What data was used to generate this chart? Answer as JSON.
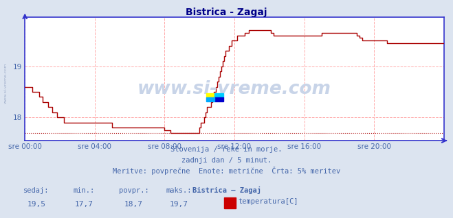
{
  "title": "Bistrica - Zagaj",
  "bg_color": "#dce4f0",
  "plot_bg_color": "#ffffff",
  "line_color": "#aa0000",
  "grid_color": "#ffaaaa",
  "axis_color": "#3333cc",
  "text_color": "#4466aa",
  "title_color": "#000088",
  "ylim": [
    17.55,
    19.95
  ],
  "xlim": [
    0,
    288
  ],
  "xtick_positions": [
    0,
    48,
    96,
    144,
    192,
    240
  ],
  "xtick_labels": [
    "sre 00:00",
    "sre 04:00",
    "sre 08:00",
    "sre 12:00",
    "sre 16:00",
    "sre 20:00"
  ],
  "ytick_positions": [
    18.0,
    19.0
  ],
  "ytick_labels": [
    "18",
    "19"
  ],
  "subtitle1": "Slovenija / reke in morje.",
  "subtitle2": "zadnji dan / 5 minut.",
  "subtitle3": "Meritve: povprečne  Enote: metrične  Črta: 5% meritev",
  "footer_labels": [
    "sedaj:",
    "min.:",
    "povpr.:",
    "maks.:",
    "Bistrica – Zagaj"
  ],
  "footer_values": [
    "19,5",
    "17,7",
    "18,7",
    "19,7"
  ],
  "legend_label": "temperatura[C]",
  "legend_color": "#cc0000",
  "min_line_y": 17.7,
  "watermark": "www.si-vreme.com",
  "left_label": "www.si-vreme.com",
  "temp_data": [
    18.6,
    18.6,
    18.6,
    18.6,
    18.6,
    18.5,
    18.5,
    18.5,
    18.5,
    18.5,
    18.4,
    18.4,
    18.3,
    18.3,
    18.3,
    18.3,
    18.2,
    18.2,
    18.2,
    18.1,
    18.1,
    18.1,
    18.0,
    18.0,
    18.0,
    18.0,
    18.0,
    17.9,
    17.9,
    17.9,
    17.9,
    17.9,
    17.9,
    17.9,
    17.9,
    17.9,
    17.9,
    17.9,
    17.9,
    17.9,
    17.9,
    17.9,
    17.9,
    17.9,
    17.9,
    17.9,
    17.9,
    17.9,
    17.9,
    17.9,
    17.9,
    17.9,
    17.9,
    17.9,
    17.9,
    17.9,
    17.9,
    17.9,
    17.9,
    17.9,
    17.8,
    17.8,
    17.8,
    17.8,
    17.8,
    17.8,
    17.8,
    17.8,
    17.8,
    17.8,
    17.8,
    17.8,
    17.8,
    17.8,
    17.8,
    17.8,
    17.8,
    17.8,
    17.8,
    17.8,
    17.8,
    17.8,
    17.8,
    17.8,
    17.8,
    17.8,
    17.8,
    17.8,
    17.8,
    17.8,
    17.8,
    17.8,
    17.8,
    17.8,
    17.8,
    17.8,
    17.75,
    17.75,
    17.75,
    17.75,
    17.7,
    17.7,
    17.7,
    17.7,
    17.7,
    17.7,
    17.7,
    17.7,
    17.7,
    17.7,
    17.7,
    17.7,
    17.7,
    17.7,
    17.7,
    17.7,
    17.7,
    17.7,
    17.7,
    17.7,
    17.8,
    17.9,
    17.9,
    18.0,
    18.1,
    18.2,
    18.2,
    18.2,
    18.3,
    18.4,
    18.5,
    18.6,
    18.7,
    18.8,
    18.9,
    19.0,
    19.1,
    19.2,
    19.3,
    19.3,
    19.4,
    19.4,
    19.5,
    19.5,
    19.5,
    19.5,
    19.6,
    19.6,
    19.6,
    19.6,
    19.6,
    19.65,
    19.65,
    19.65,
    19.7,
    19.7,
    19.7,
    19.7,
    19.7,
    19.7,
    19.7,
    19.7,
    19.7,
    19.7,
    19.7,
    19.7,
    19.7,
    19.7,
    19.7,
    19.65,
    19.65,
    19.6,
    19.6,
    19.6,
    19.6,
    19.6,
    19.6,
    19.6,
    19.6,
    19.6,
    19.6,
    19.6,
    19.6,
    19.6,
    19.6,
    19.6,
    19.6,
    19.6,
    19.6,
    19.6,
    19.6,
    19.6,
    19.6,
    19.6,
    19.6,
    19.6,
    19.6,
    19.6,
    19.6,
    19.6,
    19.6,
    19.6,
    19.6,
    19.6,
    19.65,
    19.65,
    19.65,
    19.65,
    19.65,
    19.65,
    19.65,
    19.65,
    19.65,
    19.65,
    19.65,
    19.65,
    19.65,
    19.65,
    19.65,
    19.65,
    19.65,
    19.65,
    19.65,
    19.65,
    19.65,
    19.65,
    19.65,
    19.65,
    19.6,
    19.6,
    19.55,
    19.55,
    19.5,
    19.5,
    19.5,
    19.5,
    19.5,
    19.5,
    19.5,
    19.5,
    19.5,
    19.5,
    19.5,
    19.5,
    19.5,
    19.5,
    19.5,
    19.5,
    19.5,
    19.45,
    19.45,
    19.45,
    19.45,
    19.45,
    19.45,
    19.45,
    19.45,
    19.45,
    19.45,
    19.45,
    19.45,
    19.45,
    19.45,
    19.45,
    19.45,
    19.45,
    19.45,
    19.45,
    19.45,
    19.45,
    19.45,
    19.45,
    19.45,
    19.45,
    19.45,
    19.45,
    19.45,
    19.45,
    19.45,
    19.45,
    19.45,
    19.45,
    19.45,
    19.45,
    19.45,
    19.45,
    19.45,
    19.45,
    19.45
  ]
}
